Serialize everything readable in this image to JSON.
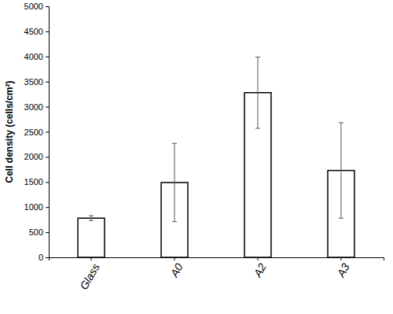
{
  "chart_data": {
    "type": "bar",
    "y_label": "Cell density (cells/cm²)",
    "categories": [
      "Glass",
      "A0",
      "A2",
      "A3"
    ],
    "values": [
      780,
      1490,
      3280,
      1730
    ],
    "errors": [
      50,
      780,
      710,
      950
    ],
    "color": "#ffffff",
    "ylim": [
      0,
      5000
    ],
    "yticks": [
      0,
      500,
      1000,
      1500,
      2000,
      2500,
      3000,
      3500,
      4000,
      4500,
      5000
    ],
    "grid": false
  }
}
